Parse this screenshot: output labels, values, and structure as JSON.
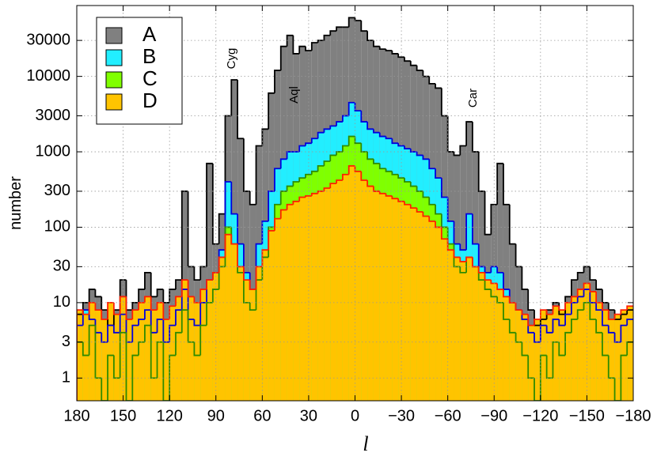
{
  "chart_data": {
    "type": "histogram",
    "xlabel": "l",
    "ylabel": "number",
    "log_y": true,
    "grid": true,
    "legend": "upper-left",
    "bins": [
      180,
      176,
      172,
      168,
      164,
      160,
      156,
      152,
      148,
      144,
      140,
      136,
      132,
      128,
      124,
      120,
      116,
      112,
      108,
      104,
      100,
      96,
      92,
      88,
      84,
      80,
      76,
      72,
      68,
      64,
      60,
      56,
      52,
      48,
      44,
      40,
      36,
      32,
      28,
      24,
      20,
      16,
      12,
      8,
      4,
      0,
      -4,
      -8,
      -12,
      -16,
      -20,
      -24,
      -28,
      -32,
      -36,
      -40,
      -44,
      -48,
      -52,
      -56,
      -60,
      -64,
      -68,
      -72,
      -76,
      -80,
      -84,
      -88,
      -92,
      -96,
      -100,
      -104,
      -108,
      -112,
      -116,
      -120,
      -124,
      -128,
      -132,
      -136,
      -140,
      -144,
      -148,
      -152,
      -156,
      -160,
      -164,
      -168,
      -172,
      -176,
      -180
    ],
    "xlim": [
      180,
      -180
    ],
    "xticks": [
      180,
      150,
      120,
      90,
      60,
      30,
      0,
      {
        "value": -30,
        "label": "−30"
      },
      {
        "value": -60,
        "label": "−60"
      },
      {
        "value": -90,
        "label": "−90"
      },
      {
        "value": -120,
        "label": "−120"
      },
      {
        "value": -150,
        "label": "−150"
      },
      {
        "value": -180,
        "label": "−180"
      }
    ],
    "ylim": [
      0.5,
      87000
    ],
    "yticks": [
      1,
      3,
      10,
      30,
      100,
      300,
      1000,
      3000,
      10000,
      30000
    ],
    "annotations": [
      "Cyg",
      "Aql",
      "Car"
    ],
    "series": [
      {
        "name": "A",
        "color": "#808080",
        "edgecolor": "#000000",
        "values": [
          7,
          10,
          15,
          12,
          8,
          5,
          8,
          20,
          8,
          10,
          15,
          25,
          12,
          15,
          10,
          15,
          20,
          300,
          30,
          20,
          30,
          700,
          60,
          150,
          3000,
          9000,
          1500,
          300,
          200,
          1200,
          2000,
          6000,
          12000,
          25000,
          35000,
          20000,
          25000,
          22000,
          28000,
          30000,
          35000,
          40000,
          45000,
          45000,
          60000,
          55000,
          40000,
          30000,
          25000,
          23000,
          22000,
          20000,
          18000,
          16000,
          14000,
          12000,
          10000,
          8000,
          7000,
          3000,
          1000,
          900,
          1200,
          2500,
          1000,
          300,
          80,
          200,
          700,
          200,
          60,
          30,
          15,
          8,
          5,
          6,
          8,
          10,
          7,
          12,
          20,
          25,
          30,
          20,
          15,
          10,
          8,
          6,
          7,
          8
        ]
      },
      {
        "name": "B",
        "color": "#22eeff",
        "edgecolor": "#0000dd",
        "values": [
          5,
          8,
          6,
          4,
          3,
          5,
          4,
          7,
          3,
          5,
          6,
          8,
          4,
          6,
          3,
          5,
          8,
          15,
          6,
          5,
          10,
          20,
          25,
          50,
          400,
          150,
          60,
          25,
          15,
          60,
          120,
          300,
          600,
          800,
          1000,
          1000,
          1200,
          1300,
          1500,
          1800,
          2000,
          2200,
          2500,
          3000,
          4500,
          3500,
          2500,
          2000,
          1800,
          1600,
          1500,
          1300,
          1200,
          1100,
          1000,
          900,
          800,
          600,
          450,
          250,
          120,
          60,
          50,
          150,
          60,
          30,
          25,
          30,
          25,
          15,
          10,
          8,
          6,
          4,
          3,
          5,
          4,
          6,
          5,
          7,
          10,
          12,
          15,
          10,
          8,
          5,
          4,
          3,
          5,
          6
        ]
      },
      {
        "name": "C",
        "color": "#80ff00",
        "edgecolor": "#2e8b00",
        "values": [
          3,
          2,
          5,
          1,
          0,
          2,
          1,
          4,
          0,
          2,
          3,
          5,
          1,
          3,
          0,
          2,
          4,
          8,
          3,
          2,
          5,
          10,
          15,
          30,
          100,
          60,
          25,
          10,
          8,
          20,
          40,
          100,
          200,
          300,
          350,
          400,
          450,
          500,
          550,
          650,
          750,
          900,
          1000,
          1200,
          1600,
          1300,
          1000,
          800,
          700,
          600,
          550,
          500,
          450,
          400,
          350,
          300,
          250,
          200,
          150,
          100,
          60,
          30,
          25,
          40,
          30,
          20,
          15,
          12,
          10,
          6,
          4,
          3,
          2,
          1,
          0,
          2,
          1,
          3,
          2,
          4,
          6,
          8,
          10,
          6,
          4,
          2,
          1,
          0,
          2,
          3
        ]
      },
      {
        "name": "D",
        "color": "#ffc400",
        "edgecolor": "#ff2000",
        "values": [
          8,
          7,
          10,
          8,
          6,
          10,
          7,
          12,
          6,
          8,
          10,
          12,
          8,
          10,
          6,
          9,
          12,
          20,
          12,
          10,
          15,
          20,
          25,
          40,
          80,
          60,
          30,
          20,
          15,
          30,
          50,
          90,
          130,
          170,
          200,
          220,
          250,
          260,
          280,
          300,
          330,
          380,
          420,
          500,
          650,
          550,
          420,
          350,
          300,
          280,
          260,
          240,
          220,
          200,
          180,
          160,
          140,
          120,
          100,
          70,
          50,
          40,
          35,
          40,
          30,
          25,
          20,
          18,
          15,
          12,
          10,
          8,
          7,
          5,
          6,
          8,
          7,
          9,
          8,
          10,
          12,
          15,
          18,
          14,
          10,
          8,
          6,
          7,
          8,
          9
        ]
      }
    ]
  }
}
